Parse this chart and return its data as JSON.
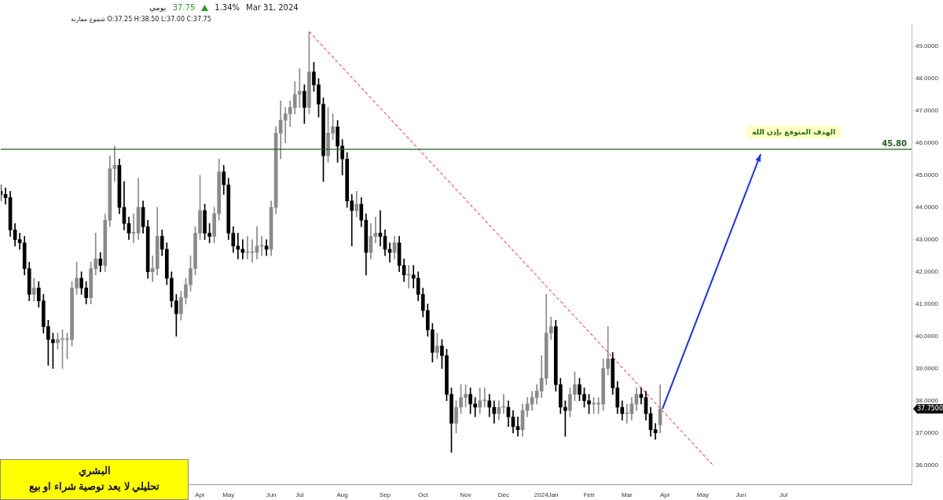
{
  "chart_data": {
    "type": "candlestick",
    "title": "يومي",
    "subtitle": "شموع مقارنة O:37.25 H:38.50 L:37.00 C:37.75",
    "categories": [
      null,
      null,
      null,
      null,
      null,
      null,
      null,
      null,
      null,
      null,
      null,
      null,
      null,
      null,
      null,
      null,
      null,
      null,
      null,
      null,
      null,
      null,
      null,
      null,
      null,
      null,
      null,
      null,
      null,
      null,
      null,
      null,
      null,
      null,
      null,
      null,
      null,
      null,
      null,
      null,
      null,
      null,
      "Apr",
      null,
      null,
      null,
      null,
      null,
      "May",
      null,
      null,
      null,
      null,
      null,
      null,
      null,
      null,
      "Jun",
      null,
      null,
      null,
      null,
      null,
      "Jul",
      null,
      null,
      null,
      null,
      null,
      null,
      null,
      null,
      "Aug",
      null,
      null,
      null,
      null,
      null,
      null,
      null,
      null,
      "Sep",
      null,
      null,
      null,
      null,
      null,
      null,
      null,
      "Oct",
      null,
      null,
      null,
      null,
      null,
      null,
      null,
      null,
      "Nov",
      null,
      null,
      null,
      null,
      null,
      null,
      null,
      "Dec",
      null,
      null,
      null,
      null,
      null,
      null,
      null,
      null,
      "2024Jan",
      null,
      null,
      null,
      null,
      null,
      null,
      null,
      null,
      "Feb",
      null,
      null,
      null,
      null,
      null,
      null,
      null,
      "Mar",
      null,
      null,
      null,
      null,
      null,
      null,
      null,
      "Apr",
      null,
      null,
      null,
      null,
      null,
      null,
      null,
      "May",
      null,
      null,
      null,
      null,
      null,
      null,
      null,
      "Jun",
      null,
      null,
      null,
      null,
      null,
      null,
      null,
      null,
      "Jul",
      null,
      null,
      null,
      null,
      null,
      null,
      null,
      null,
      null,
      null,
      null,
      null,
      null,
      null,
      null,
      null,
      null,
      null,
      null,
      null,
      null,
      null,
      null,
      null,
      null,
      null,
      null
    ],
    "colors": [
      "#000000",
      "#000000",
      "#000000",
      "#000000",
      "#000000",
      "#000000",
      "#000000",
      "#8a8a8a",
      "#000000",
      "#000000",
      "#000000",
      "#000000",
      "#8a8a8a",
      "#8a8a8a",
      "#8a8a8a",
      "#8a8a8a",
      "#8a8a8a",
      "#000000",
      "#000000",
      "#8a8a8a",
      "#8a8a8a",
      "#000000",
      "#8a8a8a",
      "#8a8a8a",
      "#8a8a8a",
      "#000000",
      "#000000",
      "#000000",
      "#8a8a8a",
      "#8a8a8a",
      "#000000",
      "#000000",
      "#8a8a8a",
      "#8a8a8a",
      "#000000",
      "#000000",
      "#000000",
      "#000000",
      "#8a8a8a",
      "#8a8a8a",
      "#8a8a8a",
      "#8a8a8a",
      "#8a8a8a",
      "#000000",
      "#000000",
      "#8a8a8a",
      "#8a8a8a",
      "#000000",
      "#000000",
      "#000000",
      "#000000",
      "#000000",
      "#8a8a8a",
      "#8a8a8a",
      "#8a8a8a",
      "#8a8a8a",
      "#000000",
      "#8a8a8a",
      "#8a8a8a",
      "#8a8a8a",
      "#8a8a8a",
      "#8a8a8a",
      "#8a8a8a",
      "#8a8a8a",
      "#000000",
      "#8a8a8a",
      "#000000",
      "#000000",
      "#000000",
      "#8a8a8a",
      "#8a8a8a",
      "#000000",
      "#000000",
      "#000000",
      "#000000",
      "#8a8a8a",
      "#000000",
      "#000000",
      "#8a8a8a",
      "#8a8a8a",
      "#000000",
      "#000000",
      "#000000",
      "#8a8a8a",
      "#000000",
      "#000000",
      "#8a8a8a",
      "#000000",
      "#000000",
      "#000000",
      "#000000",
      "#000000",
      "#8a8a8a",
      "#000000",
      "#000000",
      "#000000",
      "#8a8a8a",
      "#8a8a8a",
      "#8a8a8a",
      "#000000",
      "#000000",
      "#8a8a8a",
      "#8a8a8a",
      "#000000",
      "#000000",
      "#8a8a8a",
      "#8a8a8a",
      "#000000",
      "#000000",
      "#000000",
      "#8a8a8a",
      "#8a8a8a",
      "#8a8a8a",
      "#8a8a8a",
      "#8a8a8a",
      "#8a8a8a",
      "#8a8a8a",
      "#000000",
      "#000000",
      "#000000",
      "#8a8a8a",
      "#8a8a8a",
      "#000000",
      "#000000",
      "#000000",
      "#8a8a8a",
      "#8a8a8a",
      "#8a8a8a",
      "#8a8a8a",
      "#000000",
      "#000000",
      "#000000",
      "#8a8a8a",
      "#8a8a8a",
      "#8a8a8a",
      "#000000",
      "#000000",
      "#000000",
      "#000000",
      "#8a8a8a",
      null,
      null,
      null,
      null,
      null,
      null,
      null,
      null,
      null,
      null,
      null,
      null,
      null,
      null,
      null,
      null,
      null,
      null,
      null,
      null,
      null,
      null,
      null,
      null,
      null,
      null,
      null,
      null,
      null,
      null,
      null,
      null,
      null,
      null,
      null,
      null,
      null,
      null,
      null,
      null,
      null,
      null,
      null,
      null,
      null,
      null,
      null,
      null,
      null,
      null,
      null,
      null,
      null
    ],
    "ohlc": [
      [
        44.5,
        44.7,
        44.2,
        44.4
      ],
      [
        44.4,
        44.6,
        44.1,
        44.3
      ],
      [
        44.3,
        44.5,
        43.1,
        43.3
      ],
      [
        43.3,
        43.5,
        42.8,
        43.0
      ],
      [
        43.0,
        43.2,
        42.7,
        42.9
      ],
      [
        42.9,
        43.1,
        41.9,
        42.1
      ],
      [
        42.1,
        42.3,
        41.1,
        41.3
      ],
      [
        41.3,
        41.8,
        41.1,
        41.5
      ],
      [
        41.5,
        41.7,
        40.9,
        41.1
      ],
      [
        41.1,
        41.3,
        40.1,
        40.3
      ],
      [
        40.3,
        40.5,
        39.1,
        39.9
      ],
      [
        39.9,
        40.1,
        39.0,
        39.8
      ],
      [
        39.8,
        40.1,
        39.6,
        39.9
      ],
      [
        39.9,
        40.2,
        39.0,
        39.9
      ],
      [
        39.9,
        40.1,
        39.3,
        39.9
      ],
      [
        39.9,
        41.7,
        39.7,
        41.5
      ],
      [
        41.5,
        42.3,
        41.3,
        41.8
      ],
      [
        41.8,
        42.0,
        41.3,
        41.5
      ],
      [
        41.5,
        41.7,
        41.0,
        41.2
      ],
      [
        41.2,
        42.3,
        41.0,
        42.1
      ],
      [
        42.1,
        43.2,
        41.9,
        42.4
      ],
      [
        42.4,
        42.6,
        42.0,
        42.2
      ],
      [
        42.2,
        43.8,
        42.0,
        43.6
      ],
      [
        43.6,
        45.6,
        43.4,
        45.2
      ],
      [
        45.2,
        45.9,
        44.8,
        45.3
      ],
      [
        45.3,
        45.5,
        43.8,
        44.0
      ],
      [
        44.0,
        44.8,
        43.3,
        43.5
      ],
      [
        43.5,
        43.7,
        43.0,
        43.2
      ],
      [
        43.2,
        43.8,
        42.9,
        43.2
      ],
      [
        43.2,
        44.9,
        43.0,
        44.0
      ],
      [
        44.0,
        44.2,
        43.2,
        43.4
      ],
      [
        43.4,
        43.6,
        41.8,
        42.0
      ],
      [
        42.0,
        42.5,
        41.7,
        42.1
      ],
      [
        42.1,
        44.0,
        41.9,
        43.1
      ],
      [
        43.1,
        43.3,
        42.5,
        42.7
      ],
      [
        42.7,
        42.9,
        41.6,
        41.8
      ],
      [
        41.8,
        42.0,
        40.9,
        41.1
      ],
      [
        41.1,
        41.3,
        40.0,
        40.7
      ],
      [
        40.7,
        41.4,
        40.5,
        41.2
      ],
      [
        41.2,
        41.8,
        41.0,
        41.6
      ],
      [
        41.6,
        42.5,
        41.4,
        42.1
      ],
      [
        42.1,
        43.4,
        41.9,
        43.2
      ],
      [
        43.2,
        45.0,
        43.0,
        43.9
      ],
      [
        43.9,
        44.1,
        43.0,
        43.2
      ],
      [
        43.2,
        43.5,
        42.9,
        43.1
      ],
      [
        43.1,
        44.0,
        42.9,
        43.8
      ],
      [
        43.8,
        45.5,
        43.6,
        45.1
      ],
      [
        45.1,
        45.3,
        44.4,
        44.7
      ],
      [
        44.7,
        44.9,
        43.0,
        43.2
      ],
      [
        43.2,
        43.4,
        42.6,
        42.8
      ],
      [
        42.8,
        43.2,
        42.4,
        42.7
      ],
      [
        42.7,
        43.0,
        42.4,
        42.6
      ],
      [
        42.6,
        43.1,
        42.4,
        42.6
      ],
      [
        42.6,
        43.0,
        42.3,
        42.6
      ],
      [
        42.6,
        43.4,
        42.4,
        42.8
      ],
      [
        42.8,
        43.1,
        42.5,
        42.8
      ],
      [
        42.8,
        43.0,
        42.5,
        42.7
      ],
      [
        42.7,
        44.2,
        42.5,
        44.0
      ],
      [
        44.0,
        46.5,
        43.8,
        46.3
      ],
      [
        46.3,
        47.3,
        45.5,
        46.7
      ],
      [
        46.7,
        47.1,
        46.0,
        46.9
      ],
      [
        46.9,
        47.3,
        46.5,
        47.1
      ],
      [
        47.1,
        47.9,
        46.9,
        47.5
      ],
      [
        47.5,
        48.3,
        47.1,
        47.6
      ],
      [
        47.6,
        47.8,
        46.6,
        47.1
      ],
      [
        47.1,
        49.45,
        46.9,
        48.2
      ],
      [
        48.2,
        48.5,
        47.6,
        47.8
      ],
      [
        47.8,
        48.0,
        46.8,
        47.2
      ],
      [
        47.2,
        47.4,
        44.8,
        45.6
      ],
      [
        45.6,
        47.1,
        45.4,
        46.3
      ],
      [
        46.3,
        46.9,
        46.1,
        46.5
      ],
      [
        46.5,
        46.7,
        45.4,
        45.9
      ],
      [
        45.9,
        46.1,
        45.0,
        45.5
      ],
      [
        45.5,
        45.7,
        44.0,
        44.2
      ],
      [
        44.2,
        44.4,
        42.8,
        43.9
      ],
      [
        43.9,
        44.5,
        43.7,
        44.1
      ],
      [
        44.1,
        44.3,
        43.4,
        43.6
      ],
      [
        43.6,
        43.8,
        41.9,
        42.6
      ],
      [
        42.6,
        43.5,
        42.4,
        43.1
      ],
      [
        43.1,
        43.7,
        42.9,
        43.2
      ],
      [
        43.2,
        43.9,
        42.8,
        43.1
      ],
      [
        43.1,
        43.3,
        42.5,
        42.7
      ],
      [
        42.7,
        42.9,
        42.3,
        42.6
      ],
      [
        42.6,
        43.1,
        42.4,
        42.9
      ],
      [
        42.9,
        43.1,
        42.0,
        42.2
      ],
      [
        42.2,
        42.4,
        41.7,
        41.9
      ],
      [
        41.9,
        42.2,
        41.5,
        41.9
      ],
      [
        41.9,
        42.2,
        41.5,
        41.8
      ],
      [
        41.8,
        42.0,
        41.1,
        41.3
      ],
      [
        41.3,
        41.5,
        40.6,
        40.8
      ],
      [
        40.8,
        41.0,
        40.0,
        40.2
      ],
      [
        40.2,
        40.4,
        39.2,
        39.5
      ],
      [
        39.5,
        40.1,
        39.3,
        39.7
      ],
      [
        39.7,
        39.9,
        39.0,
        39.4
      ],
      [
        39.4,
        39.6,
        38.0,
        38.2
      ],
      [
        38.2,
        38.4,
        36.4,
        37.3
      ],
      [
        37.3,
        38.0,
        37.0,
        37.8
      ],
      [
        37.8,
        38.5,
        37.6,
        38.1
      ],
      [
        38.1,
        38.5,
        37.8,
        38.2
      ],
      [
        38.2,
        38.4,
        37.6,
        37.9
      ],
      [
        37.9,
        38.1,
        37.5,
        37.8
      ],
      [
        37.8,
        38.4,
        37.6,
        38.0
      ],
      [
        38.0,
        38.4,
        37.8,
        38.0
      ],
      [
        38.0,
        38.2,
        37.5,
        37.8
      ],
      [
        37.8,
        38.0,
        37.3,
        37.6
      ],
      [
        37.6,
        38.0,
        37.4,
        37.8
      ],
      [
        37.8,
        38.2,
        37.6,
        37.8
      ],
      [
        37.8,
        38.0,
        37.2,
        37.5
      ],
      [
        37.5,
        37.7,
        37.0,
        37.2
      ],
      [
        37.2,
        37.5,
        36.9,
        37.1
      ],
      [
        37.1,
        37.9,
        36.9,
        37.7
      ],
      [
        37.7,
        38.1,
        37.5,
        37.9
      ],
      [
        37.9,
        38.3,
        37.7,
        38.1
      ],
      [
        38.1,
        38.5,
        37.9,
        38.3
      ],
      [
        38.3,
        39.4,
        38.1,
        38.7
      ],
      [
        38.7,
        41.3,
        38.5,
        40.1
      ],
      [
        40.1,
        40.6,
        39.9,
        40.3
      ],
      [
        40.3,
        40.5,
        38.3,
        38.5
      ],
      [
        38.5,
        38.7,
        37.6,
        37.8
      ],
      [
        37.8,
        38.0,
        36.9,
        37.7
      ],
      [
        37.7,
        38.4,
        37.5,
        38.2
      ],
      [
        38.2,
        38.9,
        38.0,
        38.5
      ],
      [
        38.5,
        38.7,
        38.0,
        38.2
      ],
      [
        38.2,
        38.4,
        37.8,
        38.0
      ],
      [
        38.0,
        38.2,
        37.6,
        37.9
      ],
      [
        37.9,
        38.1,
        37.6,
        37.9
      ],
      [
        37.9,
        38.1,
        37.6,
        37.9
      ],
      [
        37.9,
        39.3,
        37.7,
        39.0
      ],
      [
        39.0,
        40.3,
        38.8,
        39.3
      ],
      [
        39.3,
        39.5,
        38.2,
        38.4
      ],
      [
        38.4,
        38.6,
        37.6,
        37.8
      ],
      [
        37.8,
        38.0,
        37.4,
        37.6
      ],
      [
        37.6,
        37.9,
        37.3,
        37.6
      ],
      [
        37.6,
        38.1,
        37.4,
        37.9
      ],
      [
        37.9,
        38.4,
        37.7,
        38.2
      ],
      [
        38.2,
        38.4,
        37.9,
        38.1
      ],
      [
        38.1,
        38.3,
        37.4,
        37.6
      ],
      [
        37.6,
        37.8,
        36.9,
        37.1
      ],
      [
        37.1,
        37.3,
        36.8,
        37.0
      ],
      [
        37.25,
        38.5,
        37.0,
        37.75
      ],
      null,
      null,
      null,
      null,
      null,
      null,
      null,
      null,
      null,
      null,
      null,
      null,
      null,
      null,
      null,
      null,
      null,
      null,
      null,
      null,
      null,
      null,
      null,
      null,
      null,
      null,
      null,
      null,
      null,
      null,
      null,
      null,
      null,
      null,
      null,
      null,
      null,
      null,
      null,
      null,
      null,
      null,
      null,
      null,
      null,
      null,
      null,
      null,
      null,
      null,
      null,
      null,
      null
    ],
    "series": [
      {
        "type": "line",
        "color": "#ff0000",
        "line_style": "dashed",
        "values": [
          null,
          null,
          null,
          null,
          null,
          null,
          null,
          null,
          null,
          null,
          null,
          null,
          null,
          null,
          null,
          null,
          null,
          null,
          null,
          null,
          null,
          null,
          null,
          null,
          null,
          null,
          null,
          null,
          null,
          null,
          null,
          null,
          null,
          null,
          null,
          null,
          null,
          null,
          null,
          null,
          null,
          null,
          null,
          null,
          null,
          null,
          null,
          null,
          null,
          null,
          null,
          null,
          null,
          null,
          null,
          null,
          null,
          null,
          null,
          null,
          null,
          null,
          null,
          null,
          null,
          49.45,
          null,
          null,
          null,
          null,
          null,
          null,
          null,
          null,
          null,
          null,
          null,
          null,
          null,
          null,
          null,
          null,
          null,
          null,
          null,
          null,
          null,
          null,
          null,
          null,
          null,
          null,
          null,
          null,
          null,
          null,
          null,
          null,
          null,
          null,
          null,
          null,
          null,
          null,
          null,
          null,
          null,
          null,
          null,
          null,
          null,
          null,
          null,
          null,
          null,
          null,
          null,
          null,
          null,
          null,
          null,
          null,
          null,
          null,
          null,
          null,
          null,
          null,
          null,
          null,
          null,
          null,
          null,
          null,
          null,
          null,
          null,
          null,
          null,
          null,
          null,
          null,
          null,
          null,
          null,
          null,
          null,
          null,
          null,
          null,
          36.03,
          null,
          null,
          null,
          null,
          null,
          null,
          null,
          null,
          null,
          null,
          null,
          null,
          null,
          null,
          null,
          null,
          null,
          null,
          null,
          null,
          null,
          null,
          null,
          null,
          null,
          null,
          null,
          null,
          null,
          null,
          null,
          null,
          null,
          null,
          null,
          null,
          null,
          null,
          null,
          null,
          null,
          null
        ]
      }
    ],
    "ylim": [
      35.4,
      49.7
    ],
    "yticks": [
      {
        "value": 36,
        "label": "36.0000"
      },
      {
        "value": 37,
        "label": "37.0000"
      },
      {
        "value": 38,
        "label": "38.0000"
      },
      {
        "value": 39,
        "label": "39.0000"
      },
      {
        "value": 40,
        "label": "40.0000"
      },
      {
        "value": 41,
        "label": "41.0000"
      },
      {
        "value": 42,
        "label": "42.0000"
      },
      {
        "value": 43,
        "label": "43.0000"
      },
      {
        "value": 44,
        "label": "44.0000"
      },
      {
        "value": 45,
        "label": "45.0000"
      },
      {
        "value": 46,
        "label": "46.0000"
      },
      {
        "value": 47,
        "label": "47.0000"
      },
      {
        "value": 48,
        "label": "48.0000"
      },
      {
        "value": 49,
        "label": "49.0000"
      }
    ],
    "ref_lines": [
      {
        "axis": "y",
        "value": 45.8,
        "label": "45.80",
        "color": "#1e5e1e"
      }
    ],
    "annotations": [
      "37.75",
      "1.34%",
      "Mar 31, 2024",
      "الهدف المتوقع بإذن الله",
      "البشري",
      "تحليلي لا يعد توصية شراء او بيع",
      "37.7500"
    ],
    "grid": false,
    "legend": false
  }
}
